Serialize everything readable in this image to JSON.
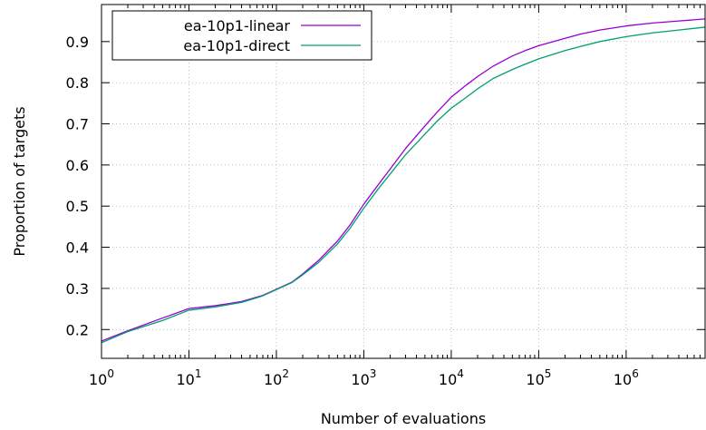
{
  "chart_data": {
    "type": "line",
    "title": "",
    "xlabel": "Number of evaluations",
    "ylabel": "Proportion of targets",
    "x_scale": "log10",
    "xlim": [
      1,
      8000000
    ],
    "ylim": [
      0.13,
      0.99
    ],
    "x_ticks": [
      {
        "value": 1,
        "base": "10",
        "exp": "0"
      },
      {
        "value": 10,
        "base": "10",
        "exp": "1"
      },
      {
        "value": 100,
        "base": "10",
        "exp": "2"
      },
      {
        "value": 1000,
        "base": "10",
        "exp": "3"
      },
      {
        "value": 10000,
        "base": "10",
        "exp": "4"
      },
      {
        "value": 100000,
        "base": "10",
        "exp": "5"
      },
      {
        "value": 1000000,
        "base": "10",
        "exp": "6"
      }
    ],
    "y_ticks": [
      {
        "value": 0.2,
        "label": "0.2"
      },
      {
        "value": 0.3,
        "label": "0.3"
      },
      {
        "value": 0.4,
        "label": "0.4"
      },
      {
        "value": 0.5,
        "label": "0.5"
      },
      {
        "value": 0.6,
        "label": "0.6"
      },
      {
        "value": 0.7,
        "label": "0.7"
      },
      {
        "value": 0.8,
        "label": "0.8"
      },
      {
        "value": 0.9,
        "label": "0.9"
      }
    ],
    "grid": true,
    "legend_position": "top-left",
    "series": [
      {
        "name": "ea-10p1-linear",
        "color": "#9400d3",
        "points": [
          [
            1,
            0.172
          ],
          [
            2,
            0.197
          ],
          [
            5,
            0.228
          ],
          [
            10,
            0.251
          ],
          [
            20,
            0.258
          ],
          [
            40,
            0.268
          ],
          [
            70,
            0.283
          ],
          [
            100,
            0.298
          ],
          [
            150,
            0.315
          ],
          [
            200,
            0.335
          ],
          [
            300,
            0.367
          ],
          [
            500,
            0.415
          ],
          [
            700,
            0.455
          ],
          [
            1000,
            0.505
          ],
          [
            1500,
            0.555
          ],
          [
            2000,
            0.59
          ],
          [
            3000,
            0.64
          ],
          [
            5000,
            0.695
          ],
          [
            7000,
            0.73
          ],
          [
            10000,
            0.765
          ],
          [
            15000,
            0.795
          ],
          [
            20000,
            0.815
          ],
          [
            30000,
            0.84
          ],
          [
            50000,
            0.865
          ],
          [
            70000,
            0.878
          ],
          [
            100000,
            0.89
          ],
          [
            200000,
            0.908
          ],
          [
            300000,
            0.918
          ],
          [
            500000,
            0.928
          ],
          [
            1000000,
            0.938
          ],
          [
            2000000,
            0.945
          ],
          [
            4000000,
            0.95
          ],
          [
            8000000,
            0.955
          ]
        ]
      },
      {
        "name": "ea-10p1-direct",
        "color": "#009e73",
        "points": [
          [
            1,
            0.168
          ],
          [
            2,
            0.195
          ],
          [
            5,
            0.222
          ],
          [
            10,
            0.247
          ],
          [
            20,
            0.255
          ],
          [
            40,
            0.266
          ],
          [
            70,
            0.282
          ],
          [
            100,
            0.297
          ],
          [
            150,
            0.314
          ],
          [
            200,
            0.333
          ],
          [
            300,
            0.362
          ],
          [
            500,
            0.408
          ],
          [
            700,
            0.447
          ],
          [
            1000,
            0.495
          ],
          [
            1500,
            0.545
          ],
          [
            2000,
            0.578
          ],
          [
            3000,
            0.625
          ],
          [
            5000,
            0.675
          ],
          [
            7000,
            0.708
          ],
          [
            10000,
            0.738
          ],
          [
            15000,
            0.765
          ],
          [
            20000,
            0.785
          ],
          [
            30000,
            0.81
          ],
          [
            50000,
            0.832
          ],
          [
            70000,
            0.845
          ],
          [
            100000,
            0.858
          ],
          [
            200000,
            0.878
          ],
          [
            300000,
            0.888
          ],
          [
            500000,
            0.9
          ],
          [
            1000000,
            0.912
          ],
          [
            2000000,
            0.921
          ],
          [
            4000000,
            0.928
          ],
          [
            8000000,
            0.935
          ]
        ]
      }
    ]
  }
}
